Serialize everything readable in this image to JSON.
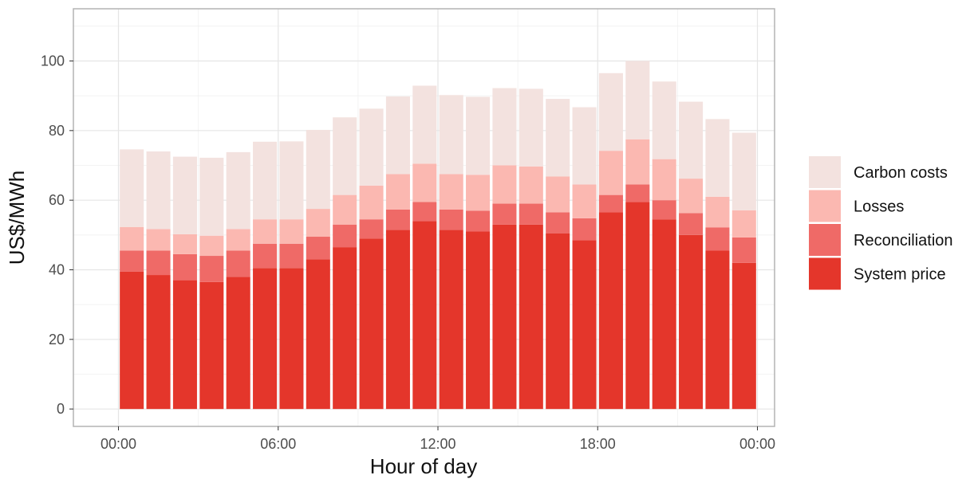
{
  "chart_data": {
    "type": "bar",
    "stacked": true,
    "title": "",
    "xlabel": "Hour of day",
    "ylabel": "US$/MWh",
    "x_tick_labels": [
      "00:00",
      "06:00",
      "12:00",
      "18:00",
      "00:00"
    ],
    "y_ticks": [
      0,
      20,
      40,
      60,
      80,
      100
    ],
    "ylim": [
      -5,
      115
    ],
    "grid": true,
    "legend_position": "right",
    "categories": [
      "00:00",
      "01:00",
      "02:00",
      "03:00",
      "04:00",
      "05:00",
      "06:00",
      "07:00",
      "08:00",
      "09:00",
      "10:00",
      "11:00",
      "12:00",
      "13:00",
      "14:00",
      "15:00",
      "16:00",
      "17:00",
      "18:00",
      "19:00",
      "20:00",
      "21:00",
      "22:00",
      "23:00"
    ],
    "series": [
      {
        "name": "System price",
        "color": "#e4362b",
        "values": [
          39.5,
          38.5,
          37.0,
          36.5,
          38.0,
          40.5,
          40.5,
          43.0,
          46.5,
          49.0,
          51.5,
          54.0,
          51.5,
          51.0,
          53.0,
          53.0,
          50.5,
          48.5,
          56.5,
          59.5,
          54.5,
          50.0,
          45.5,
          42.0
        ]
      },
      {
        "name": "Reconciliation",
        "color": "#ef6a67",
        "values": [
          6.0,
          7.0,
          7.5,
          7.5,
          7.5,
          7.0,
          7.0,
          6.5,
          6.5,
          5.5,
          5.8,
          5.5,
          5.8,
          6.0,
          6.0,
          6.0,
          6.0,
          6.3,
          5.0,
          5.0,
          5.5,
          6.3,
          6.7,
          7.3
        ]
      },
      {
        "name": "Losses",
        "color": "#fbb8b1",
        "values": [
          6.8,
          6.2,
          5.7,
          5.8,
          6.2,
          7.0,
          7.0,
          8.0,
          8.5,
          9.7,
          10.2,
          11.0,
          10.2,
          10.3,
          11.0,
          10.7,
          10.3,
          9.7,
          12.7,
          13.0,
          11.8,
          9.9,
          8.8,
          7.8
        ]
      },
      {
        "name": "Carbon costs",
        "color": "#f3e2df",
        "values": [
          22.3,
          22.3,
          22.3,
          22.4,
          22.1,
          22.3,
          22.4,
          22.7,
          22.3,
          22.1,
          22.3,
          22.4,
          22.7,
          22.4,
          22.2,
          22.3,
          22.3,
          22.2,
          22.3,
          22.5,
          22.3,
          22.1,
          22.3,
          22.3
        ]
      }
    ]
  }
}
